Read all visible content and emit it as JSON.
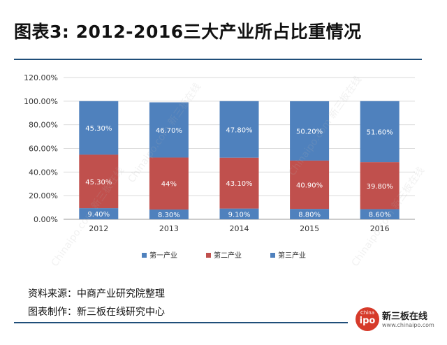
{
  "title": "图表3: 2012-2016三大产业所占比重情况",
  "footer": {
    "source": "资料来源：中商产业研究院整理",
    "maker": "图表制作：新三板在线研究中心"
  },
  "logo": {
    "badge_top": "China",
    "badge_main": "ipo",
    "name": "新三板在线",
    "url": "www.chinaipo.com"
  },
  "watermark": "Chinaipo.com 新三板在线",
  "colors": {
    "primary": "#4f81bd",
    "secondary": "#c0504d",
    "tertiary": "#4a7ebb",
    "rule": "#1f4e79",
    "logo": "#d63a2a"
  },
  "chart_data": {
    "type": "bar",
    "stacked": true,
    "categories": [
      "2012",
      "2013",
      "2014",
      "2015",
      "2016"
    ],
    "series": [
      {
        "name": "第一产业",
        "values": [
          9.4,
          8.3,
          9.1,
          8.8,
          8.6
        ],
        "labels": [
          "9.40%",
          "8.30%",
          "9.10%",
          "8.80%",
          "8.60%"
        ],
        "color": "#4f81bd"
      },
      {
        "name": "第二产业",
        "values": [
          45.3,
          44,
          43.1,
          40.9,
          39.8
        ],
        "labels": [
          "45.30%",
          "44%",
          "43.10%",
          "40.90%",
          "39.80%"
        ],
        "color": "#c0504d"
      },
      {
        "name": "第三产业",
        "values": [
          45.3,
          46.7,
          47.8,
          50.2,
          51.6
        ],
        "labels": [
          "45.30%",
          "46.70%",
          "47.80%",
          "50.20%",
          "51.60%"
        ],
        "color": "#4f81bd"
      }
    ],
    "y_ticks": [
      "0.00%",
      "20.00%",
      "40.00%",
      "60.00%",
      "80.00%",
      "100.00%",
      "120.00%"
    ],
    "ylim": [
      0,
      120
    ],
    "xlabel": "",
    "ylabel": "",
    "grid": true,
    "legend": "bottom"
  }
}
